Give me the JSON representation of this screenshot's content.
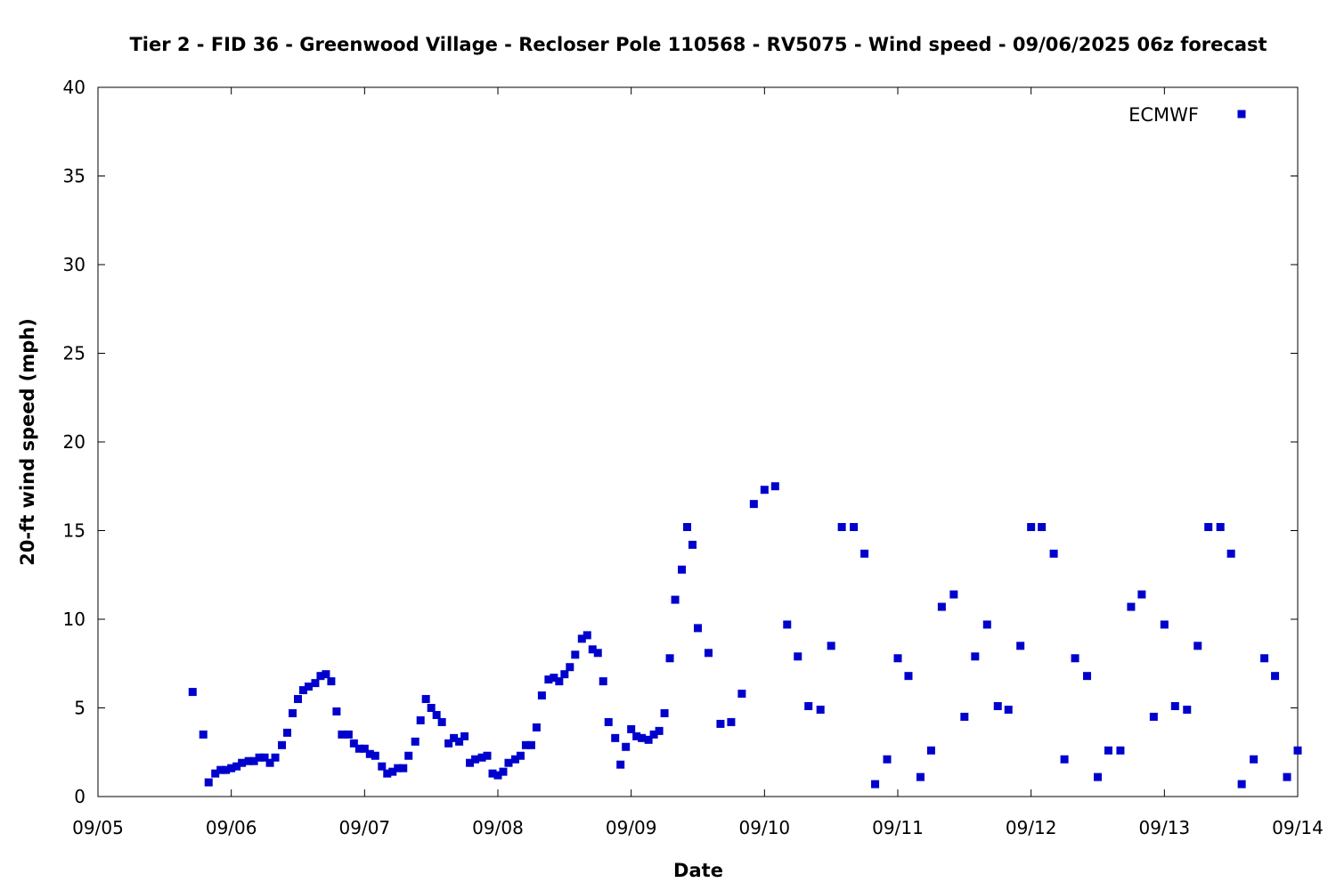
{
  "chart_data": {
    "type": "scatter",
    "title": "Tier 2 - FID 36 - Greenwood Village - Recloser Pole 110568 - RV5075 - Wind speed - 09/06/2025 06z forecast",
    "xlabel": "Date",
    "ylabel": "20-ft wind speed (mph)",
    "x_unit": "days since 09/05 00z",
    "xlim": [
      0,
      9
    ],
    "ylim": [
      0,
      40
    ],
    "x_ticks": [
      {
        "value": 0,
        "label": "09/05"
      },
      {
        "value": 1,
        "label": "09/06"
      },
      {
        "value": 2,
        "label": "09/07"
      },
      {
        "value": 3,
        "label": "09/08"
      },
      {
        "value": 4,
        "label": "09/09"
      },
      {
        "value": 5,
        "label": "09/10"
      },
      {
        "value": 6,
        "label": "09/11"
      },
      {
        "value": 7,
        "label": "09/12"
      },
      {
        "value": 8,
        "label": "09/13"
      },
      {
        "value": 9,
        "label": "09/14"
      }
    ],
    "y_ticks": [
      0,
      5,
      10,
      15,
      20,
      25,
      30,
      35,
      40
    ],
    "grid": false,
    "legend_position": "top-right",
    "series": [
      {
        "name": "ECMWF",
        "marker": "square",
        "color": "#0000cc",
        "x": [
          0.71,
          0.79,
          0.83,
          0.88,
          0.92,
          0.96,
          1.0,
          1.04,
          1.08,
          1.13,
          1.17,
          1.21,
          1.25,
          1.29,
          1.33,
          1.38,
          1.42,
          1.46,
          1.5,
          1.54,
          1.58,
          1.63,
          1.67,
          1.71,
          1.75,
          1.79,
          1.83,
          1.88,
          1.92,
          1.96,
          2.0,
          2.04,
          2.08,
          2.13,
          2.17,
          2.21,
          2.25,
          2.29,
          2.33,
          2.38,
          2.42,
          2.46,
          2.5,
          2.54,
          2.58,
          2.63,
          2.67,
          2.71,
          2.75,
          2.79,
          2.83,
          2.88,
          2.92,
          2.96,
          3.0,
          3.04,
          3.08,
          3.13,
          3.17,
          3.21,
          3.25,
          3.29,
          3.33,
          3.38,
          3.42,
          3.46,
          3.5,
          3.54,
          3.58,
          3.63,
          3.67,
          3.71,
          3.75,
          3.79,
          3.83,
          3.88,
          3.92,
          3.96,
          4.0,
          4.04,
          4.08,
          4.13,
          4.17,
          4.21,
          4.25,
          4.29,
          4.33,
          4.38,
          4.42,
          4.46,
          4.5,
          4.58,
          4.67,
          4.75,
          4.83,
          4.92,
          5.0,
          5.08,
          5.17,
          5.25,
          5.33,
          5.42,
          5.5,
          5.58,
          5.67,
          5.75,
          5.83,
          5.92,
          6.0,
          6.08,
          6.17,
          6.25,
          6.33,
          6.42,
          6.5,
          6.58,
          6.67,
          6.75,
          6.83,
          6.92,
          7.0,
          7.08,
          7.17,
          7.25,
          7.33,
          7.42,
          7.5,
          7.58,
          7.67,
          7.75,
          7.83,
          7.92,
          8.0,
          8.08,
          8.17,
          8.25,
          8.33,
          8.42,
          8.5,
          8.58,
          8.67,
          8.75,
          8.83,
          8.92,
          9.0
        ],
        "y": [
          5.9,
          3.5,
          0.8,
          1.3,
          1.5,
          1.5,
          1.6,
          1.7,
          1.9,
          2.0,
          2.0,
          2.2,
          2.2,
          1.9,
          2.2,
          2.9,
          3.6,
          4.7,
          5.5,
          6.0,
          6.2,
          6.4,
          6.8,
          6.9,
          6.5,
          4.8,
          3.5,
          3.5,
          3.0,
          2.7,
          2.7,
          2.4,
          2.3,
          1.7,
          1.3,
          1.4,
          1.6,
          1.6,
          2.3,
          3.1,
          4.3,
          5.5,
          5.0,
          4.6,
          4.2,
          3.0,
          3.3,
          3.1,
          3.4,
          1.9,
          2.1,
          2.2,
          2.3,
          1.3,
          1.2,
          1.4,
          1.9,
          2.1,
          2.3,
          2.9,
          2.9,
          3.9,
          5.7,
          6.6,
          6.7,
          6.5,
          6.9,
          7.3,
          8.0,
          8.9,
          9.1,
          8.3,
          8.1,
          6.5,
          4.2,
          3.3,
          1.8,
          2.8,
          3.8,
          3.4,
          3.3,
          3.2,
          3.5,
          3.7,
          4.7,
          7.8,
          11.1,
          12.8,
          15.2,
          14.2,
          9.5,
          8.1,
          4.1,
          4.2,
          5.8,
          16.5,
          17.3,
          17.5,
          9.7,
          7.9,
          5.1,
          4.9,
          8.5,
          15.2,
          15.2,
          13.7,
          0.7,
          2.1,
          7.8,
          6.8,
          1.1,
          2.6,
          10.7,
          11.4,
          4.5,
          7.9,
          9.7,
          5.1,
          4.9,
          8.5,
          15.2,
          15.2,
          13.7,
          2.1,
          7.8,
          6.8,
          1.1,
          2.6,
          2.6,
          10.7,
          11.4,
          4.5,
          9.7,
          5.1,
          4.9,
          8.5,
          15.2,
          15.2,
          13.7,
          0.7,
          2.1,
          7.8,
          6.8,
          1.1,
          2.6
        ],
        "note": "values as plotted"
      }
    ]
  }
}
